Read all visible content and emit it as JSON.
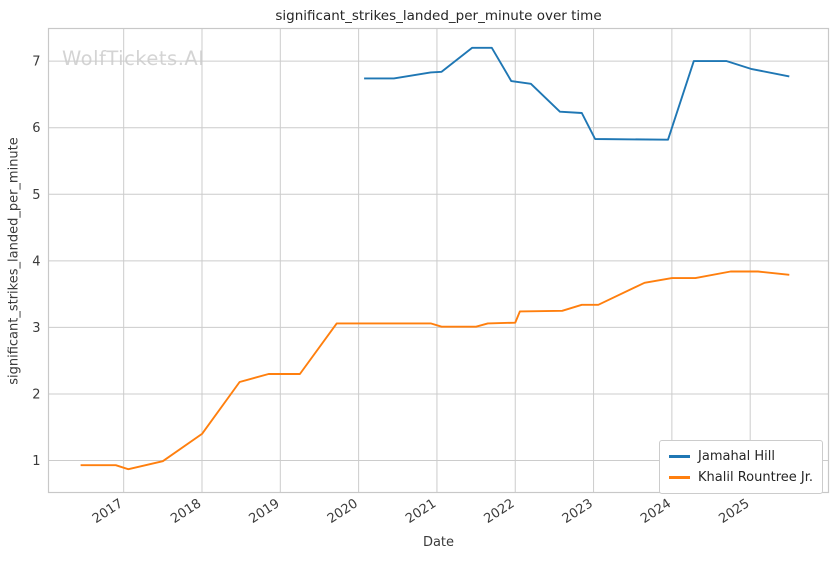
{
  "chart_data": {
    "type": "line",
    "title": "significant_strikes_landed_per_minute over time",
    "xlabel": "Date",
    "ylabel": "significant_strikes_landed_per_minute",
    "watermark": "WolfTickets.AI",
    "xlim": [
      2016.04,
      2026.0
    ],
    "ylim": [
      0.52,
      7.49
    ],
    "x_tick_values": [
      2017,
      2018,
      2019,
      2020,
      2021,
      2022,
      2023,
      2024,
      2025
    ],
    "x_tick_labels": [
      "2017",
      "2018",
      "2019",
      "2020",
      "2021",
      "2022",
      "2023",
      "2024",
      "2025"
    ],
    "y_tick_values": [
      1,
      2,
      3,
      4,
      5,
      6,
      7
    ],
    "y_tick_labels": [
      "1",
      "2",
      "3",
      "4",
      "5",
      "6",
      "7"
    ],
    "grid": true,
    "legend_position": "lower right",
    "colors": {
      "grid": "#cccccc",
      "spine": "#c8c8c8",
      "tick_text": "#3b3b3b",
      "title_text": "#262626",
      "watermark": "#d4d4d4",
      "series_blue": "#1f77b4",
      "series_orange": "#ff7f0e"
    },
    "series": [
      {
        "name": "Jamahal Hill",
        "color": "#1f77b4",
        "points": [
          [
            2020.07,
            6.74
          ],
          [
            2020.45,
            6.74
          ],
          [
            2020.92,
            6.83
          ],
          [
            2021.06,
            6.84
          ],
          [
            2021.45,
            7.2
          ],
          [
            2021.7,
            7.2
          ],
          [
            2021.95,
            6.7
          ],
          [
            2022.2,
            6.66
          ],
          [
            2022.57,
            6.24
          ],
          [
            2022.85,
            6.22
          ],
          [
            2023.02,
            5.83
          ],
          [
            2023.95,
            5.82
          ],
          [
            2024.28,
            7.0
          ],
          [
            2024.7,
            7.0
          ],
          [
            2025.02,
            6.88
          ],
          [
            2025.5,
            6.77
          ]
        ]
      },
      {
        "name": "Khalil Rountree Jr.",
        "color": "#ff7f0e",
        "points": [
          [
            2016.45,
            0.93
          ],
          [
            2016.9,
            0.93
          ],
          [
            2017.06,
            0.87
          ],
          [
            2017.5,
            0.99
          ],
          [
            2018.0,
            1.4
          ],
          [
            2018.48,
            2.18
          ],
          [
            2018.85,
            2.3
          ],
          [
            2019.25,
            2.3
          ],
          [
            2019.72,
            3.06
          ],
          [
            2020.92,
            3.06
          ],
          [
            2021.06,
            3.01
          ],
          [
            2021.5,
            3.01
          ],
          [
            2021.65,
            3.06
          ],
          [
            2022.0,
            3.07
          ],
          [
            2022.06,
            3.24
          ],
          [
            2022.6,
            3.25
          ],
          [
            2022.85,
            3.34
          ],
          [
            2023.06,
            3.34
          ],
          [
            2023.65,
            3.67
          ],
          [
            2024.0,
            3.74
          ],
          [
            2024.3,
            3.74
          ],
          [
            2024.75,
            3.84
          ],
          [
            2025.1,
            3.84
          ],
          [
            2025.5,
            3.79
          ]
        ]
      }
    ]
  }
}
